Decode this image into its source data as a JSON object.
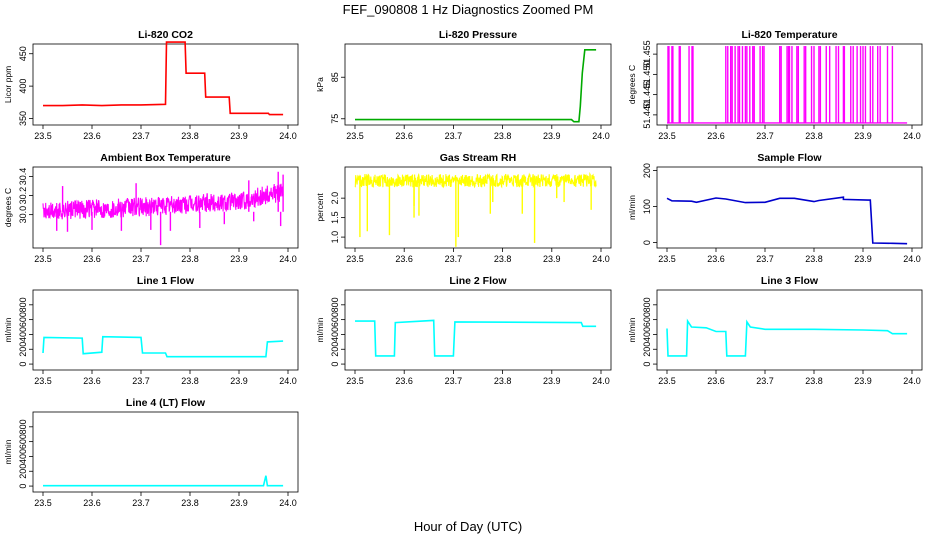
{
  "figure": {
    "title": "FEF_090808  1 Hz Diagnostics Zoomed PM",
    "xlabel": "Hour of Day (UTC)"
  },
  "chart_data": [
    {
      "type": "line",
      "title": "Li-820 CO2",
      "ylabel": "Licor ppm",
      "color": "#ff0000",
      "x_ticks": [
        "23.5",
        "23.6",
        "23.7",
        "23.8",
        "23.9",
        "24.0"
      ],
      "y_ticks": [
        "350",
        "400",
        "450"
      ],
      "xlim": [
        23.5,
        24.0
      ],
      "ylim": [
        340,
        465
      ],
      "series": [
        {
          "x": [
            23.5,
            23.54,
            23.58,
            23.62,
            23.66,
            23.7,
            23.75,
            23.752,
            23.77,
            23.79,
            23.792,
            23.82,
            23.83,
            23.832,
            23.87,
            23.88,
            23.882,
            23.96,
            23.962,
            23.99
          ],
          "y": [
            370,
            370,
            371,
            370,
            371,
            371,
            372,
            468,
            468,
            468,
            420,
            420,
            420,
            383,
            383,
            383,
            358,
            358,
            356,
            356
          ]
        }
      ]
    },
    {
      "type": "line",
      "title": "Li-820 Pressure",
      "ylabel": "kPa",
      "color": "#00aa00",
      "x_ticks": [
        "23.5",
        "23.6",
        "23.7",
        "23.8",
        "23.9",
        "24.0"
      ],
      "y_ticks": [
        "75",
        "85"
      ],
      "xlim": [
        23.5,
        24.0
      ],
      "ylim": [
        73.5,
        93
      ],
      "series": [
        {
          "x": [
            23.5,
            23.6,
            23.7,
            23.8,
            23.9,
            23.94,
            23.945,
            23.955,
            23.958,
            23.962,
            23.967,
            23.975,
            23.99
          ],
          "y": [
            74.8,
            74.8,
            74.8,
            74.8,
            74.8,
            74.8,
            74.3,
            74.3,
            78,
            86,
            91.6,
            91.6,
            91.6
          ]
        }
      ]
    },
    {
      "type": "line",
      "title": "Li-820 Temperature",
      "ylabel": "degrees C",
      "color": "#ff00ff",
      "x_ticks": [
        "23.5",
        "23.6",
        "23.7",
        "23.8",
        "23.9",
        "24.0"
      ],
      "y_ticks": [
        "51.440",
        "51.445",
        "51.450",
        "51.455"
      ],
      "xlim": [
        23.5,
        24.0
      ],
      "ylim": [
        51.4375,
        51.4575
      ],
      "baseline": 51.438,
      "spikes_top": 51.457,
      "spike_x": [
        23.502,
        23.504,
        23.51,
        23.512,
        23.525,
        23.527,
        23.545,
        23.551,
        23.553,
        23.62,
        23.624,
        23.63,
        23.633,
        23.639,
        23.645,
        23.648,
        23.654,
        23.66,
        23.663,
        23.669,
        23.675,
        23.678,
        23.69,
        23.695,
        23.698,
        23.73,
        23.733,
        23.745,
        23.748,
        23.75,
        23.755,
        23.765,
        23.768,
        23.78,
        23.783,
        23.795,
        23.8,
        23.81,
        23.813,
        23.825,
        23.832,
        23.845,
        23.85,
        23.86,
        23.862,
        23.875,
        23.88,
        23.888,
        23.895,
        23.9,
        23.905,
        23.915,
        23.92,
        23.93,
        23.935,
        23.95,
        23.96
      ]
    },
    {
      "type": "line",
      "title": "Ambient Box Temperature",
      "ylabel": "degrees C",
      "color": "#ff00ff",
      "x_ticks": [
        "23.5",
        "23.6",
        "23.7",
        "23.8",
        "23.9",
        "24.0"
      ],
      "y_ticks": [
        "30.0",
        "30.2",
        "30.4"
      ],
      "xlim": [
        23.5,
        24.0
      ],
      "ylim": [
        29.65,
        30.5
      ],
      "band_x": [
        23.5,
        23.6,
        23.7,
        23.8,
        23.9,
        23.95,
        23.99
      ],
      "band_mean": [
        30.03,
        30.06,
        30.08,
        30.11,
        30.14,
        30.2,
        30.24
      ],
      "band_halfwidth": 0.1,
      "dips": [
        [
          23.528,
          29.83
        ],
        [
          23.55,
          29.82
        ],
        [
          23.6,
          29.84
        ],
        [
          23.66,
          29.83
        ],
        [
          23.72,
          29.84
        ],
        [
          23.74,
          29.68
        ],
        [
          23.76,
          29.83
        ],
        [
          23.82,
          29.86
        ],
        [
          23.87,
          29.9
        ],
        [
          23.93,
          29.93
        ],
        [
          23.985,
          29.88
        ]
      ],
      "peaks": [
        [
          23.54,
          30.3
        ],
        [
          23.69,
          30.33
        ],
        [
          23.92,
          30.36
        ],
        [
          23.98,
          30.45
        ],
        [
          23.99,
          30.42
        ]
      ]
    },
    {
      "type": "line",
      "title": "Gas Stream RH",
      "ylabel": "percent",
      "color": "#ffff00",
      "x_ticks": [
        "23.5",
        "23.6",
        "23.7",
        "23.8",
        "23.9",
        "24.0"
      ],
      "y_ticks": [
        "1.0",
        "1.5",
        "2.0"
      ],
      "xlim": [
        23.5,
        24.0
      ],
      "ylim": [
        0.72,
        2.8
      ],
      "band_mean": 2.45,
      "band_halfwidth": 0.17,
      "dips": [
        [
          23.51,
          1.0
        ],
        [
          23.525,
          1.15
        ],
        [
          23.57,
          1.05
        ],
        [
          23.62,
          1.5
        ],
        [
          23.71,
          1.0
        ],
        [
          23.78,
          1.9
        ],
        [
          23.775,
          1.6
        ],
        [
          23.98,
          1.7
        ],
        [
          23.62,
          1.8
        ],
        [
          23.63,
          1.55
        ],
        [
          23.705,
          0.75
        ],
        [
          23.84,
          1.6
        ],
        [
          23.865,
          0.85
        ],
        [
          23.91,
          2.0
        ],
        [
          23.925,
          1.9
        ]
      ]
    },
    {
      "type": "line",
      "title": "Sample Flow",
      "ylabel": "ml/min",
      "color": "#0000cc",
      "x_ticks": [
        "23.5",
        "23.6",
        "23.7",
        "23.8",
        "23.9",
        "24.0"
      ],
      "y_ticks": [
        "0",
        "100",
        "200"
      ],
      "xlim": [
        23.5,
        24.0
      ],
      "ylim": [
        -15,
        210
      ],
      "series": [
        {
          "x": [
            23.5,
            23.51,
            23.55,
            23.56,
            23.6,
            23.62,
            23.66,
            23.7,
            23.73,
            23.76,
            23.8,
            23.81,
            23.86,
            23.86,
            23.91,
            23.915,
            23.92,
            23.96,
            23.99
          ],
          "y": [
            123,
            116,
            115,
            112,
            124,
            121,
            111,
            112,
            123,
            123,
            114,
            117,
            126,
            120,
            118,
            118,
            -1,
            -2,
            -3
          ]
        }
      ]
    },
    {
      "type": "line",
      "title": "Line 1 Flow",
      "ylabel": "ml/min",
      "color": "#00ffff",
      "x_ticks": [
        "23.5",
        "23.6",
        "23.7",
        "23.8",
        "23.9",
        "24.0"
      ],
      "y_ticks": [
        "0",
        "200",
        "400",
        "600",
        "800"
      ],
      "xlim": [
        23.5,
        24.0
      ],
      "ylim": [
        -80,
        1000
      ],
      "series": [
        {
          "x": [
            23.5,
            23.502,
            23.58,
            23.582,
            23.62,
            23.622,
            23.7,
            23.703,
            23.75,
            23.753,
            23.955,
            23.958,
            23.99
          ],
          "y": [
            150,
            360,
            350,
            140,
            160,
            370,
            360,
            150,
            150,
            100,
            100,
            300,
            310
          ]
        }
      ]
    },
    {
      "type": "line",
      "title": "Line 2 Flow",
      "ylabel": "ml/min",
      "color": "#00ffff",
      "x_ticks": [
        "23.5",
        "23.6",
        "23.7",
        "23.8",
        "23.9",
        "24.0"
      ],
      "y_ticks": [
        "0",
        "200",
        "400",
        "600",
        "800"
      ],
      "xlim": [
        23.5,
        24.0
      ],
      "ylim": [
        -80,
        1000
      ],
      "series": [
        {
          "x": [
            23.5,
            23.54,
            23.542,
            23.58,
            23.582,
            23.66,
            23.662,
            23.7,
            23.703,
            23.95,
            23.96,
            23.963,
            23.99
          ],
          "y": [
            580,
            580,
            110,
            110,
            560,
            590,
            110,
            110,
            570,
            560,
            560,
            510,
            510
          ]
        }
      ]
    },
    {
      "type": "line",
      "title": "Line 3 Flow",
      "ylabel": "ml/min",
      "color": "#00ffff",
      "x_ticks": [
        "23.5",
        "23.6",
        "23.7",
        "23.8",
        "23.9",
        "24.0"
      ],
      "y_ticks": [
        "0",
        "200",
        "400",
        "600",
        "800"
      ],
      "xlim": [
        23.5,
        24.0
      ],
      "ylim": [
        -80,
        1000
      ],
      "series": [
        {
          "x": [
            23.5,
            23.502,
            23.54,
            23.542,
            23.55,
            23.58,
            23.6,
            23.62,
            23.622,
            23.66,
            23.663,
            23.67,
            23.7,
            23.8,
            23.9,
            23.95,
            23.96,
            23.99
          ],
          "y": [
            480,
            110,
            110,
            580,
            500,
            490,
            440,
            440,
            110,
            110,
            570,
            500,
            470,
            470,
            460,
            450,
            410,
            410
          ]
        }
      ]
    },
    {
      "type": "line",
      "title": "Line 4 (LT) Flow",
      "ylabel": "ml/min",
      "color": "#00ffff",
      "x_ticks": [
        "23.5",
        "23.6",
        "23.7",
        "23.8",
        "23.9",
        "24.0"
      ],
      "y_ticks": [
        "0",
        "200",
        "400",
        "600",
        "800"
      ],
      "xlim": [
        23.5,
        24.0
      ],
      "ylim": [
        -80,
        1000
      ],
      "series": [
        {
          "x": [
            23.5,
            23.7,
            23.95,
            23.955,
            23.958,
            23.96,
            23.99
          ],
          "y": [
            5,
            5,
            5,
            140,
            5,
            5,
            5
          ]
        }
      ]
    }
  ]
}
